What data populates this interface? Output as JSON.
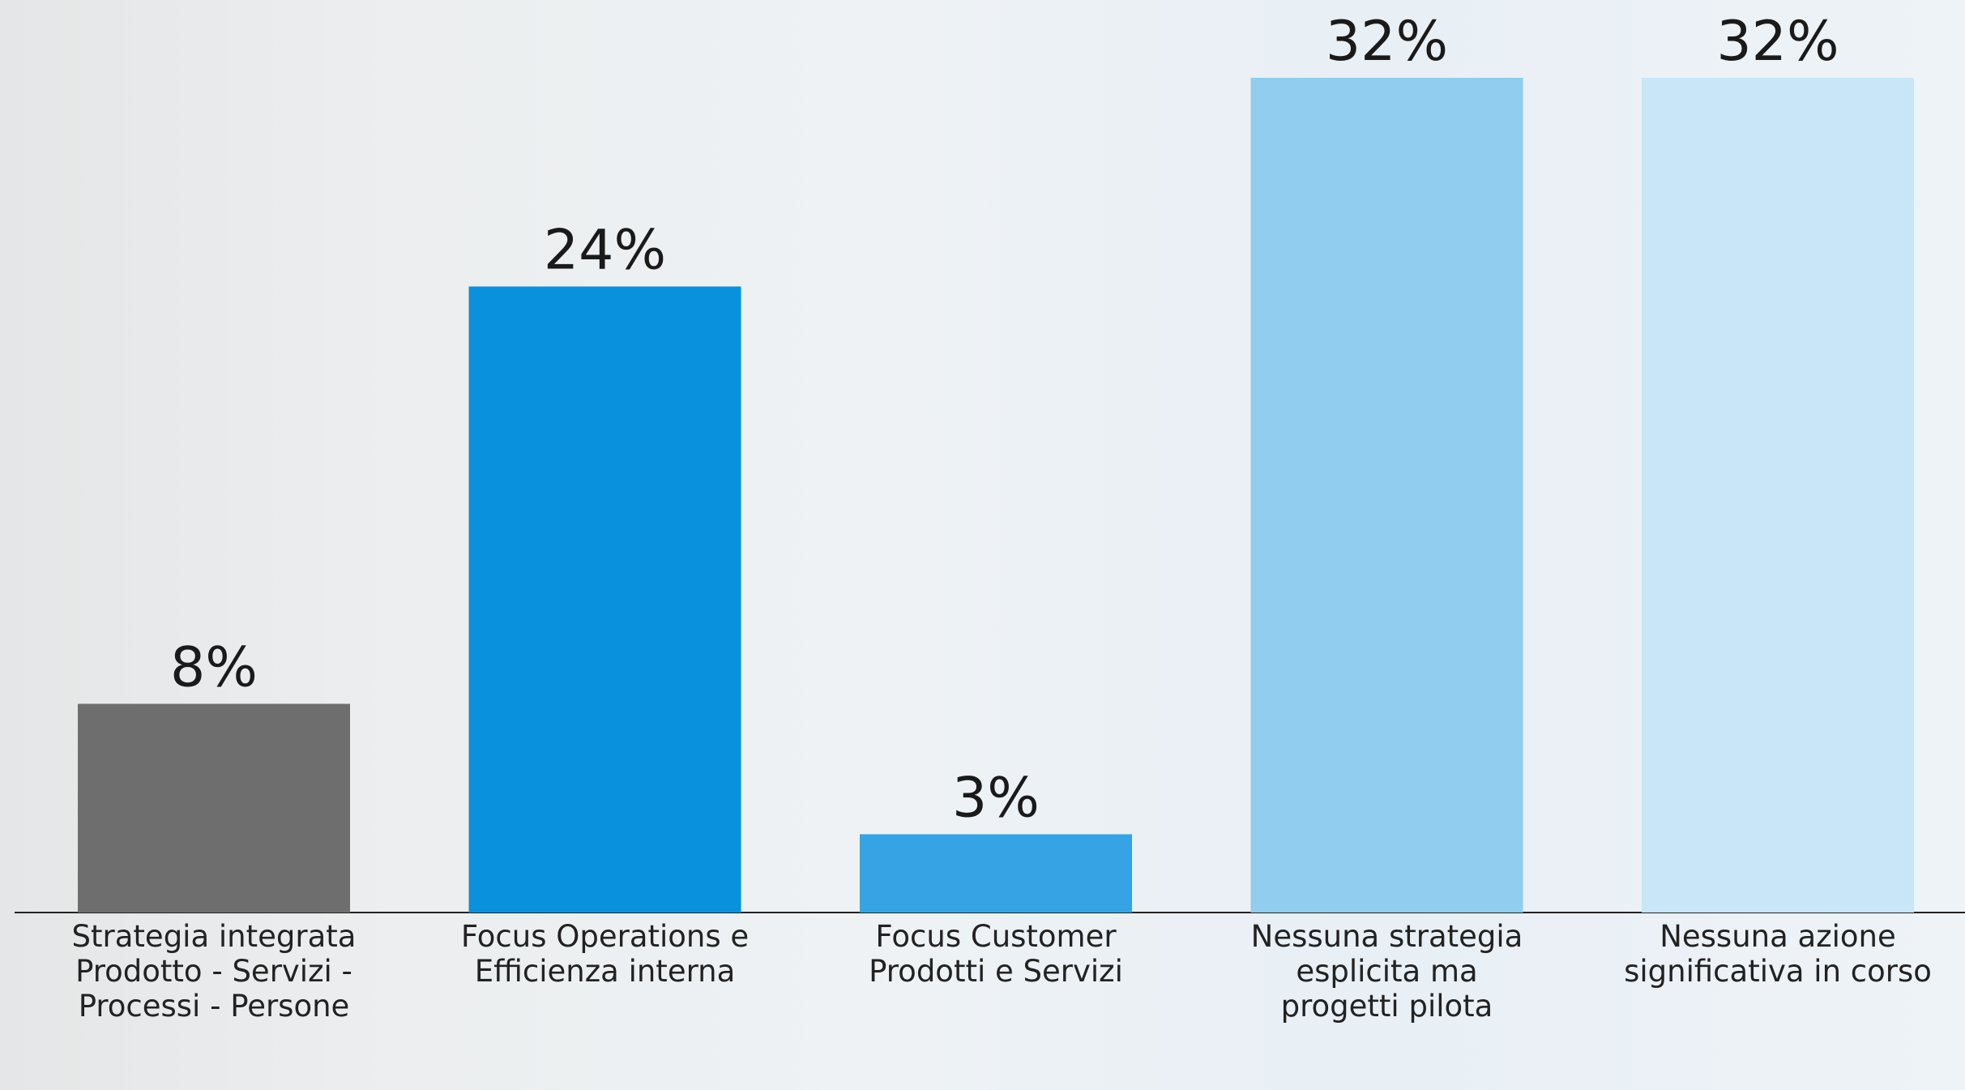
{
  "chart_data": {
    "type": "bar",
    "categories": [
      "Strategia integrata Prodotto - Servizi - Processi - Persone",
      "Focus Operations e Efficienza interna",
      "Focus Customer Prodotti e Servizi",
      "Nessuna strategia esplicita ma progetti pilota",
      "Nessuna azione significativa in corso"
    ],
    "values": [
      8,
      24,
      3,
      32,
      32
    ],
    "value_labels": [
      "8%",
      "24%",
      "3%",
      "32%",
      "32%"
    ],
    "colors": [
      "#6e6e6e",
      "#0a91dd",
      "#36a4e4",
      "#90cdef",
      "#c8e6f7"
    ]
  }
}
